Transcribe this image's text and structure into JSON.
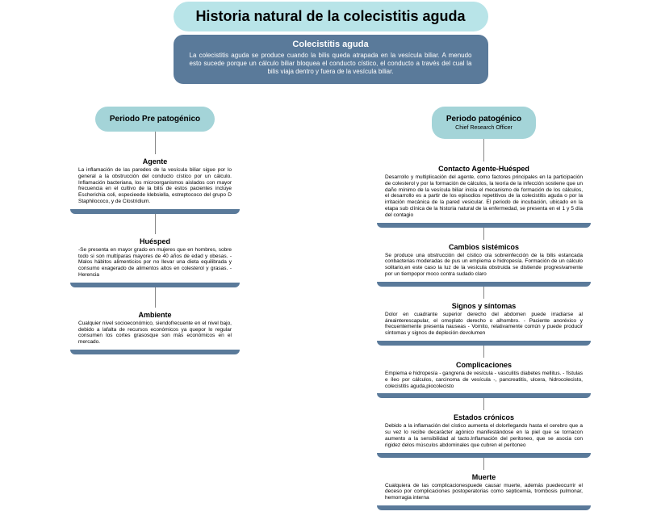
{
  "colors": {
    "banner_bg": "#b8e4e8",
    "intro_bg": "#5a7a9a",
    "period_bg": "#a4d4d8",
    "accent": "#5a7a9a",
    "text_white": "#ffffff",
    "text_black": "#000000",
    "connector": "#888888"
  },
  "title": "Historia natural de la colecistitis aguda",
  "intro": {
    "heading": "Colecistitis aguda",
    "text": "La colecistitis aguda se produce cuando la bilis queda atrapada en la vesícula biliar. A menudo esto sucede porque un cálculo biliar bloquea el conducto cístico, el conducto a través del cual la bilis viaja dentro y fuera de la vesícula biliar."
  },
  "periods": {
    "left": {
      "title": "Periodo Pre patogénico"
    },
    "right": {
      "title": "Periodo patogénico",
      "subtitle": "Chief Research Officer"
    }
  },
  "left_stages": [
    {
      "title": "Agente",
      "text": "La inflamación de las paredes de la vesícula biliar sigue por lo general a la obstrucción del conducto cístico por un cálculo. Inflamación bacteriana, los microorganismos aislados con mayor frecuencia en el cultivo de la bilis de estos pacientes incluye Escherichia coli, especieede klebsiella, estreptococo del grupo D Staphilococo, y de Clostridium."
    },
    {
      "title": "Huésped",
      "text": "-Se presenta en mayor grado en mujeres que en hombres, sobre todo si son multíparas mayores de 40 años de edad y obesas.\n-Malos hábitos alimenticios por no llevar una dieta equilibrada y consumo exagerado de alimentos altos en colesterol y grasas.\n-Herencia"
    },
    {
      "title": "Ambiente",
      "text": "Cualquier nivel socioeconómico, siendofrecuente en el nivel bajo, debido a lafalta de recursos económicos ya quepor lo regular consumen los cortes grasosque son más económicos en el mercado."
    }
  ],
  "right_stages": [
    {
      "title": "Contacto Agente-Huésped",
      "text": "Desarrollo y multiplicación del agente, como factores principales en la participación de colesterol y por la formación de cálculos, la teoría de la infección sostiene que un daño mínimo de la vesícula biliar inicia el mecanismo de formación de los cálculos, el desarrollo es a partir de los episodios repetitivos de la colecistitis aguda o por la irritación mecánica de la pared vesicular. El periodo de incubación, ubicado en la etapa sub clínica de la historia natural de la enfermedad, se presenta en el 1 y 5 día del contagio"
    },
    {
      "title": "Cambios sistémicos",
      "text": "Se produce una obstrucción del cístico oía sobreinfección de la bilis estancada conbacterias moderadas de pus un empiema e hidropesía. Formación de un cálculo solitario,en este caso la luz de la vesícula obstruida se distiende progresivamente por un tiempopor moco contra sudado claro"
    },
    {
      "title": "Signos y síntomas",
      "text": "Dolor en cuadrante superior derecho del abdomen puede irradiarse al áreainterescapular, el omoplato derecho o alhombro.\n- Paciente anoréxico y frecuentemente presenta nauseas\n- Vomito, relativamente común y puede producir síntomas y signos de depleción devolumen"
    },
    {
      "title": "Complicaciones",
      "text": "Empiema e hidropesía\n- gangrena de vesícula\n- vasculitis diabetes mellitus.\n- fístulas e íleo por cálculos, carcinoma de vesícula\n-, pancreatitis, ulcera, hidrocolecisto, colecistitis aguda,piocolecisto"
    },
    {
      "title": "Estados crónicos",
      "text": "Debido a la inflamación del cístico aumenta el dolorllegando hasta el cerebro que a su vez lo recibe decarácter agónico manifestándose en la piel que se tornacon aumento a la sensibilidad al tacto.Inflamación del peritoneo, que se asocia con rigidez delos músculos abdominales que cubren el peritoneo"
    },
    {
      "title": "Muerte",
      "text": "Cualquiera de las complicacionespuede causar muerte, además puedeocurrir el deceso por complicaciones postoperatorias como septicemia, trombosis pulmonar, hemorragia interna"
    }
  ]
}
